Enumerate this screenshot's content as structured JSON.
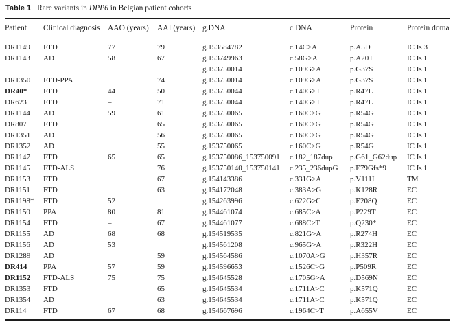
{
  "title": {
    "label": "Table 1",
    "caption_pre": "Rare variants in ",
    "caption_gene": "DPP6",
    "caption_post": " in Belgian patient cohorts"
  },
  "table": {
    "columns": [
      "Patient",
      "Clinical diagnosis",
      "AAO (years)",
      "AAI (years)",
      "g.DNA",
      "c.DNA",
      "Protein",
      "Protein domain"
    ],
    "rows": [
      {
        "patient": "DR1149",
        "bold": false,
        "diagnosis": "FTD",
        "aao": "77",
        "aai": "79",
        "gdna": "g.153584782",
        "cdna": "c.14C>A",
        "protein": "p.A5D",
        "domain": "IC Is 3"
      },
      {
        "patient": "DR1143",
        "bold": false,
        "diagnosis": "AD",
        "aao": "58",
        "aai": "67",
        "gdna": "g.153749963",
        "cdna": "c.58G>A",
        "protein": "p.A20T",
        "domain": "IC Is 1"
      },
      {
        "patient": "",
        "bold": false,
        "diagnosis": "",
        "aao": "",
        "aai": "",
        "gdna": "g.153750014",
        "cdna": "c.109G>A",
        "protein": "p.G37S",
        "domain": "IC Is 1"
      },
      {
        "patient": "DR1350",
        "bold": false,
        "diagnosis": "FTD-PPA",
        "aao": "",
        "aai": "74",
        "gdna": "g.153750014",
        "cdna": "c.109G>A",
        "protein": "p.G37S",
        "domain": "IC Is 1"
      },
      {
        "patient": "DR40*",
        "bold": true,
        "diagnosis": "FTD",
        "aao": "44",
        "aai": "50",
        "gdna": "g.153750044",
        "cdna": "c.140G>T",
        "protein": "p.R47L",
        "domain": "IC Is 1"
      },
      {
        "patient": "DR623",
        "bold": false,
        "diagnosis": "FTD",
        "aao": "–",
        "aai": "71",
        "gdna": "g.153750044",
        "cdna": "c.140G>T",
        "protein": "p.R47L",
        "domain": "IC Is 1"
      },
      {
        "patient": "DR1144",
        "bold": false,
        "diagnosis": "AD",
        "aao": "59",
        "aai": "61",
        "gdna": "g.153750065",
        "cdna": "c.160C>G",
        "protein": "p.R54G",
        "domain": "IC Is 1"
      },
      {
        "patient": "DR807",
        "bold": false,
        "diagnosis": "FTD",
        "aao": "",
        "aai": "65",
        "gdna": "g.153750065",
        "cdna": "c.160C>G",
        "protein": "p.R54G",
        "domain": "IC Is 1"
      },
      {
        "patient": "DR1351",
        "bold": false,
        "diagnosis": "AD",
        "aao": "",
        "aai": "56",
        "gdna": "g.153750065",
        "cdna": "c.160C>G",
        "protein": "p.R54G",
        "domain": "IC Is 1"
      },
      {
        "patient": "DR1352",
        "bold": false,
        "diagnosis": "AD",
        "aao": "",
        "aai": "55",
        "gdna": "g.153750065",
        "cdna": "c.160C>G",
        "protein": "p.R54G",
        "domain": "IC Is 1"
      },
      {
        "patient": "DR1147",
        "bold": false,
        "diagnosis": "FTD",
        "aao": "65",
        "aai": "65",
        "gdna": "g.153750086_153750091",
        "cdna": "c.182_187dup",
        "protein": "p.G61_G62dup",
        "domain": "IC Is 1"
      },
      {
        "patient": "DR1145",
        "bold": false,
        "diagnosis": "FTD-ALS",
        "aao": "",
        "aai": "76",
        "gdna": "g.153750140_153750141",
        "cdna": "c.235_236dupG",
        "protein": "p.E79Gfs*9",
        "domain": "IC Is 1"
      },
      {
        "patient": "DR1153",
        "bold": false,
        "diagnosis": "FTD",
        "aao": "",
        "aai": "67",
        "gdna": "g.154143386",
        "cdna": "c.331G>A",
        "protein": "p.V111I",
        "domain": "TM"
      },
      {
        "patient": "DR1151",
        "bold": false,
        "diagnosis": "FTD",
        "aao": "",
        "aai": "63",
        "gdna": "g.154172048",
        "cdna": "c.383A>G",
        "protein": "p.K128R",
        "domain": "EC"
      },
      {
        "patient": "DR1198*",
        "bold": false,
        "diagnosis": "FTD",
        "aao": "52",
        "aai": "",
        "gdna": "g.154263996",
        "cdna": "c.622G>C",
        "protein": "p.E208Q",
        "domain": "EC"
      },
      {
        "patient": "DR1150",
        "bold": false,
        "diagnosis": "PPA",
        "aao": "80",
        "aai": "81",
        "gdna": "g.154461074",
        "cdna": "c.685C>A",
        "protein": "p.P229T",
        "domain": "EC"
      },
      {
        "patient": "DR1154",
        "bold": false,
        "diagnosis": "FTD",
        "aao": "–",
        "aai": "67",
        "gdna": "g.154461077",
        "cdna": "c.688C>T",
        "protein": "p.Q230*",
        "domain": "EC"
      },
      {
        "patient": "DR1155",
        "bold": false,
        "diagnosis": "AD",
        "aao": "68",
        "aai": "68",
        "gdna": "g.154519535",
        "cdna": "c.821G>A",
        "protein": "p.R274H",
        "domain": "EC"
      },
      {
        "patient": "DR1156",
        "bold": false,
        "diagnosis": "AD",
        "aao": "53",
        "aai": "",
        "gdna": "g.154561208",
        "cdna": "c.965G>A",
        "protein": "p.R322H",
        "domain": "EC"
      },
      {
        "patient": "DR1289",
        "bold": false,
        "diagnosis": "AD",
        "aao": "",
        "aai": "59",
        "gdna": "g.154564586",
        "cdna": "c.1070A>G",
        "protein": "p.H357R",
        "domain": "EC"
      },
      {
        "patient": "DR414",
        "bold": true,
        "diagnosis": "PPA",
        "aao": "57",
        "aai": "59",
        "gdna": "g.154596653",
        "cdna": "c.1526C>G",
        "protein": "p.P509R",
        "domain": "EC"
      },
      {
        "patient": "DR1152",
        "bold": true,
        "diagnosis": "FTD-ALS",
        "aao": "75",
        "aai": "75",
        "gdna": "g.154645528",
        "cdna": "c.1705G>A",
        "protein": "p.D569N",
        "domain": "EC"
      },
      {
        "patient": "DR1353",
        "bold": false,
        "diagnosis": "FTD",
        "aao": "",
        "aai": "65",
        "gdna": "g.154645534",
        "cdna": "c.1711A>C",
        "protein": "p.K571Q",
        "domain": "EC"
      },
      {
        "patient": "DR1354",
        "bold": false,
        "diagnosis": "AD",
        "aao": "",
        "aai": "63",
        "gdna": "g.154645534",
        "cdna": "c.1711A>C",
        "protein": "p.K571Q",
        "domain": "EC"
      },
      {
        "patient": "DR114",
        "bold": false,
        "diagnosis": "FTD",
        "aao": "67",
        "aai": "68",
        "gdna": "g.154667696",
        "cdna": "c.1964C>T",
        "protein": "p.A655V",
        "domain": "EC"
      }
    ]
  }
}
